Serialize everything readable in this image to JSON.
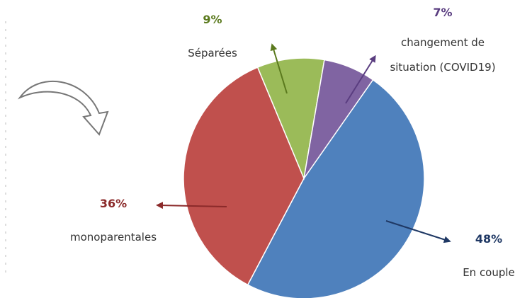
{
  "chart_data": {
    "type": "pie",
    "categories": [
      "En couple",
      "monoparentales",
      "Séparées",
      "changement de situation (COVID19)"
    ],
    "values": [
      48,
      36,
      9,
      7
    ],
    "value_labels": [
      "48%",
      "36%",
      "9%",
      "7%"
    ],
    "colors": [
      "#4f81bd",
      "#c0504d",
      "#9bbb59",
      "#8064a2"
    ]
  }
}
